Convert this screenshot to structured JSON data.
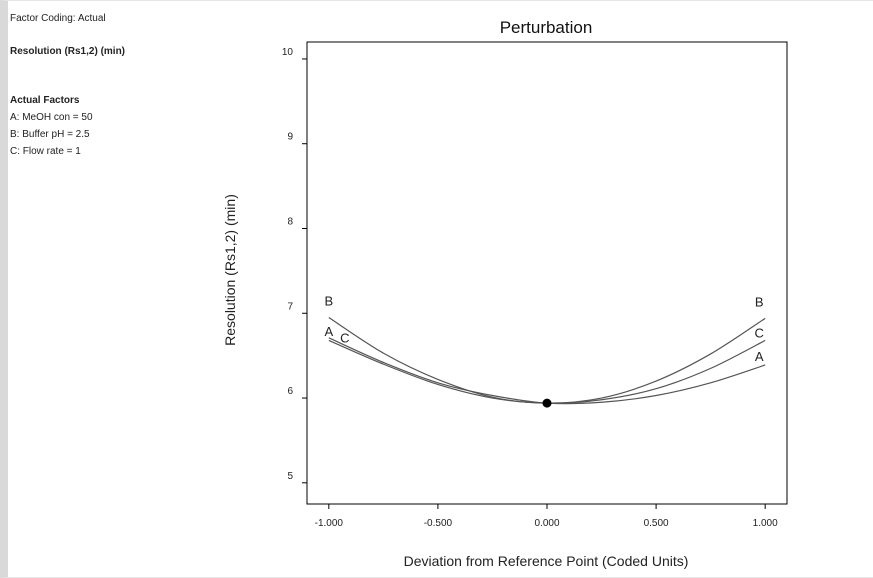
{
  "info": {
    "factor_coding": "Factor Coding: Actual",
    "response": "Resolution (Rs1,2) (min)",
    "actual_factors_title": "Actual Factors",
    "factors": [
      "A: MeOH con = 50",
      "B: Buffer pH = 2.5",
      "C: Flow rate = 1"
    ]
  },
  "chart_data": {
    "type": "line",
    "title": "Perturbation",
    "xlabel": "Deviation from Reference Point (Coded Units)",
    "ylabel": "Resolution (Rs1,2) (min)",
    "xlim": [
      -1.1,
      1.1
    ],
    "ylim": [
      4.75,
      10.2
    ],
    "x_ticks": [
      -1.0,
      -0.5,
      0.0,
      0.5,
      1.0
    ],
    "x_tick_labels": [
      "-1.000",
      "-0.500",
      "0.000",
      "0.500",
      "1.000"
    ],
    "y_ticks": [
      5,
      6,
      7,
      8,
      9,
      10
    ],
    "y_tick_labels": [
      "5",
      "6",
      "7",
      "8",
      "9",
      "10"
    ],
    "reference_point": {
      "x": 0.0,
      "y": 5.94
    },
    "series": [
      {
        "name": "A",
        "x": [
          -1.0,
          -0.75,
          -0.5,
          -0.25,
          0.0,
          0.25,
          0.5,
          0.75,
          1.0
        ],
        "y": [
          6.71,
          6.42,
          6.18,
          6.03,
          5.94,
          5.95,
          6.03,
          6.18,
          6.39
        ]
      },
      {
        "name": "B",
        "x": [
          -1.0,
          -0.75,
          -0.5,
          -0.25,
          0.0,
          0.25,
          0.5,
          0.75,
          1.0
        ],
        "y": [
          6.95,
          6.53,
          6.22,
          6.01,
          5.94,
          6.0,
          6.2,
          6.52,
          6.94
        ]
      },
      {
        "name": "C",
        "x": [
          -1.0,
          -0.75,
          -0.5,
          -0.25,
          0.0,
          0.25,
          0.5,
          0.75,
          1.0
        ],
        "y": [
          6.68,
          6.4,
          6.16,
          6.0,
          5.94,
          5.98,
          6.11,
          6.35,
          6.68
        ]
      }
    ],
    "grid": false,
    "colors": {
      "line": "#555555",
      "marker": "#000000"
    }
  }
}
